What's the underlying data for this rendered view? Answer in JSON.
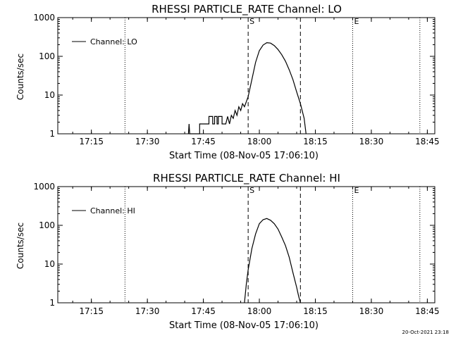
{
  "colors": {
    "background": "#ffffff",
    "ink": "#000000"
  },
  "footer_timestamp": "20-Oct-2021 23:18",
  "chart_data": [
    {
      "type": "line",
      "title": "RHESSI PARTICLE_RATE Channel: LO",
      "xlabel": "Start Time (08-Nov-05 17:06:10)",
      "ylabel": "Counts/sec",
      "yscale": "log",
      "ylim": [
        1,
        1000
      ],
      "xlim": [
        "17:06",
        "18:47"
      ],
      "xticks": [
        "17:15",
        "17:30",
        "17:45",
        "18:00",
        "18:15",
        "18:30",
        "18:45"
      ],
      "yticks": [
        "1",
        "10",
        "100",
        "1000"
      ],
      "legend": {
        "label": "Channel: LO",
        "position": "top-left"
      },
      "markers": [
        {
          "time": "17:24",
          "style": "dotted",
          "label": ""
        },
        {
          "time": "17:57",
          "style": "dashed",
          "label": "S"
        },
        {
          "time": "18:11",
          "style": "dashed",
          "label": ""
        },
        {
          "time": "18:25",
          "style": "dotted",
          "label": "E"
        },
        {
          "time": "18:43",
          "style": "dotted",
          "label": ""
        }
      ],
      "series": [
        {
          "name": "Channel: LO",
          "points": [
            [
              "17:41:00",
              1.0
            ],
            [
              "17:41:10",
              1.8
            ],
            [
              "17:41:20",
              1.0
            ],
            [
              "17:44:00",
              1.0
            ],
            [
              "17:44:00",
              1.8
            ],
            [
              "17:46:30",
              1.8
            ],
            [
              "17:46:30",
              2.8
            ],
            [
              "17:47:30",
              2.8
            ],
            [
              "17:47:30",
              1.8
            ],
            [
              "17:48:00",
              1.8
            ],
            [
              "17:48:00",
              2.8
            ],
            [
              "17:48:40",
              2.8
            ],
            [
              "17:48:40",
              1.8
            ],
            [
              "17:49:00",
              1.8
            ],
            [
              "17:49:00",
              2.8
            ],
            [
              "17:50:00",
              2.8
            ],
            [
              "17:50:00",
              1.8
            ],
            [
              "17:51:00",
              1.8
            ],
            [
              "17:51:30",
              2.8
            ],
            [
              "17:52:00",
              1.8
            ],
            [
              "17:52:30",
              3.0
            ],
            [
              "17:53:00",
              2.5
            ],
            [
              "17:53:30",
              4.0
            ],
            [
              "17:54:00",
              3.0
            ],
            [
              "17:54:30",
              5.0
            ],
            [
              "17:55:00",
              4.0
            ],
            [
              "17:55:30",
              6.0
            ],
            [
              "17:56:00",
              5.0
            ],
            [
              "17:57:00",
              9.0
            ],
            [
              "17:58:00",
              25
            ],
            [
              "17:59:00",
              70
            ],
            [
              "18:00:00",
              140
            ],
            [
              "18:01:00",
              195
            ],
            [
              "18:02:00",
              225
            ],
            [
              "18:03:00",
              220
            ],
            [
              "18:04:00",
              190
            ],
            [
              "18:05:00",
              150
            ],
            [
              "18:06:00",
              110
            ],
            [
              "18:07:00",
              75
            ],
            [
              "18:08:00",
              45
            ],
            [
              "18:09:00",
              25
            ],
            [
              "18:10:00",
              12
            ],
            [
              "18:11:00",
              6
            ],
            [
              "18:12:00",
              2.5
            ],
            [
              "18:12:30",
              1.0
            ]
          ]
        }
      ]
    },
    {
      "type": "line",
      "title": "RHESSI PARTICLE_RATE Channel: HI",
      "xlabel": "Start Time (08-Nov-05 17:06:10)",
      "ylabel": "Counts/sec",
      "yscale": "log",
      "ylim": [
        1,
        1000
      ],
      "xlim": [
        "17:06",
        "18:47"
      ],
      "xticks": [
        "17:15",
        "17:30",
        "17:45",
        "18:00",
        "18:15",
        "18:30",
        "18:45"
      ],
      "yticks": [
        "1",
        "10",
        "100",
        "1000"
      ],
      "legend": {
        "label": "Channel: HI",
        "position": "top-left"
      },
      "markers": [
        {
          "time": "17:24",
          "style": "dotted",
          "label": ""
        },
        {
          "time": "17:57",
          "style": "dashed",
          "label": "S"
        },
        {
          "time": "18:11",
          "style": "dashed",
          "label": ""
        },
        {
          "time": "18:25",
          "style": "dotted",
          "label": "E"
        },
        {
          "time": "18:43",
          "style": "dotted",
          "label": ""
        }
      ],
      "series": [
        {
          "name": "Channel: HI",
          "points": [
            [
              "17:56:00",
              1.0
            ],
            [
              "17:56:30",
              3.0
            ],
            [
              "17:57:00",
              7.0
            ],
            [
              "17:58:00",
              25
            ],
            [
              "17:59:00",
              60
            ],
            [
              "18:00:00",
              110
            ],
            [
              "18:01:00",
              140
            ],
            [
              "18:02:00",
              150
            ],
            [
              "18:03:00",
              135
            ],
            [
              "18:04:00",
              110
            ],
            [
              "18:05:00",
              80
            ],
            [
              "18:06:00",
              50
            ],
            [
              "18:07:00",
              30
            ],
            [
              "18:08:00",
              15
            ],
            [
              "18:09:00",
              6
            ],
            [
              "18:10:00",
              2.5
            ],
            [
              "18:10:30",
              1.5
            ],
            [
              "18:11:00",
              1.0
            ]
          ]
        }
      ]
    }
  ]
}
